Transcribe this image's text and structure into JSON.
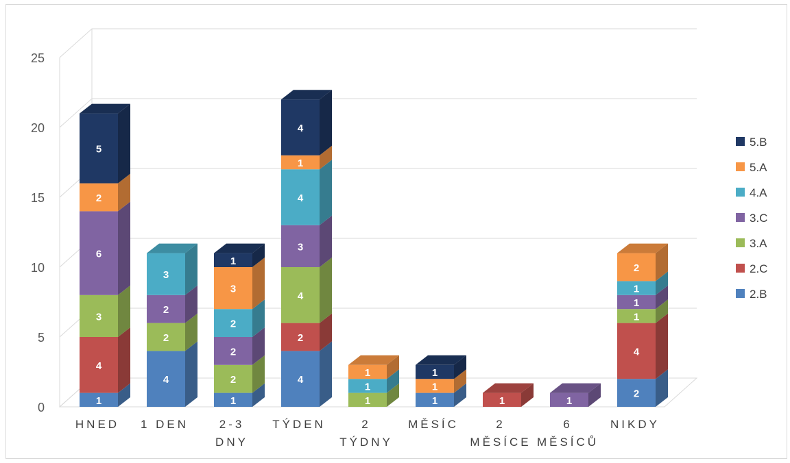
{
  "chart_data": {
    "type": "bar",
    "stacked": true,
    "style": "3d-column",
    "title": "",
    "xlabel": "",
    "ylabel": "",
    "ylim": [
      0,
      25
    ],
    "yticks": [
      0,
      5,
      10,
      15,
      20,
      25
    ],
    "grid": true,
    "legend_position": "right",
    "categories": [
      [
        "HNED"
      ],
      [
        "1 DEN"
      ],
      [
        "2-3",
        "DNY"
      ],
      [
        "TÝDEN"
      ],
      [
        "2",
        "TÝDNY"
      ],
      [
        "MĚSÍC"
      ],
      [
        "2",
        "MĚSÍCE"
      ],
      [
        "6",
        "MĚSÍCŮ"
      ],
      [
        "NIKDY"
      ]
    ],
    "series": [
      {
        "name": "2.B",
        "color": "#4F81BD",
        "values": [
          1,
          4,
          1,
          4,
          0,
          1,
          0,
          0,
          2
        ]
      },
      {
        "name": "2.C",
        "color": "#C0504D",
        "values": [
          4,
          0,
          0,
          2,
          0,
          0,
          1,
          0,
          4
        ]
      },
      {
        "name": "3.A",
        "color": "#9BBB59",
        "values": [
          3,
          2,
          2,
          4,
          1,
          0,
          0,
          0,
          1
        ]
      },
      {
        "name": "3.C",
        "color": "#8064A2",
        "values": [
          6,
          2,
          2,
          3,
          0,
          0,
          0,
          1,
          1
        ]
      },
      {
        "name": "4.A",
        "color": "#4BACC6",
        "values": [
          0,
          3,
          2,
          4,
          1,
          0,
          0,
          0,
          1
        ]
      },
      {
        "name": "5.A",
        "color": "#F79646",
        "values": [
          2,
          0,
          3,
          1,
          1,
          1,
          0,
          0,
          2
        ]
      },
      {
        "name": "5.B",
        "color": "#1F3864",
        "values": [
          5,
          0,
          1,
          4,
          0,
          1,
          0,
          0,
          0
        ]
      }
    ]
  }
}
